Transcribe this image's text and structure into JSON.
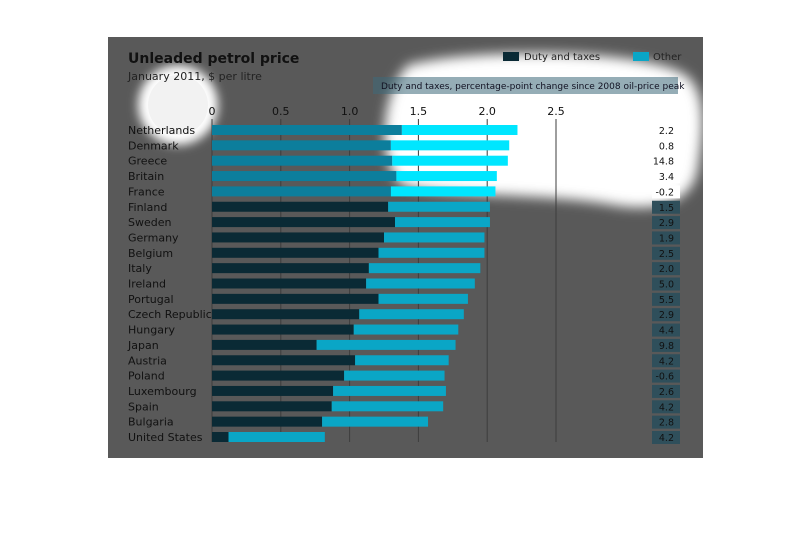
{
  "chart_data": {
    "type": "bar",
    "orientation": "horizontal",
    "stacked": true,
    "title": "Unleaded petrol price",
    "subtitle": "January 2011, $ per litre",
    "xlim": [
      0,
      2.5
    ],
    "xticks": [
      "0",
      "0.5",
      "1.0",
      "1.5",
      "2.0",
      "2.5"
    ],
    "xtick_values": [
      0,
      0.5,
      1.0,
      1.5,
      2.0,
      2.5
    ],
    "grid": true,
    "legend_position": "top-right",
    "categories": [
      "Netherlands",
      "Denmark",
      "Greece",
      "Britain",
      "France",
      "Finland",
      "Sweden",
      "Germany",
      "Belgium",
      "Italy",
      "Ireland",
      "Portugal",
      "Czech Republic",
      "Hungary",
      "Japan",
      "Austria",
      "Poland",
      "Luxembourg",
      "Spain",
      "Bulgaria",
      "United States"
    ],
    "series": [
      {
        "name": "Duty and taxes",
        "color": "#0a2a35",
        "values": [
          1.38,
          1.3,
          1.31,
          1.34,
          1.3,
          1.28,
          1.33,
          1.25,
          1.21,
          1.14,
          1.12,
          1.21,
          1.07,
          1.03,
          0.76,
          1.04,
          0.96,
          0.88,
          0.87,
          0.8,
          0.12
        ]
      },
      {
        "name": "Other",
        "color": "#0aa6c6",
        "values": [
          0.84,
          0.86,
          0.84,
          0.73,
          0.76,
          0.74,
          0.69,
          0.73,
          0.77,
          0.81,
          0.79,
          0.65,
          0.76,
          0.76,
          1.01,
          0.68,
          0.73,
          0.82,
          0.81,
          0.77,
          0.7
        ]
      }
    ],
    "side_panel": {
      "label": "Duty and taxes, percentage-point change since 2008 oil-price peak",
      "values": [
        "2.2",
        "0.8",
        "14.8",
        "3.4",
        "-0.2",
        "1.5",
        "2.9",
        "1.9",
        "2.5",
        "2.0",
        "5.0",
        "5.5",
        "2.9",
        "4.4",
        "9.8",
        "4.2",
        "-0.6",
        "2.6",
        "4.2",
        "2.8",
        "4.2"
      ]
    }
  },
  "colors": {
    "panel_bg": "#595959",
    "duty": "#0a2a35",
    "other": "#0aa6c6",
    "highlight_duty": "#0c7e9c",
    "highlight_other": "#00e6ff",
    "value_box": "#2f4f5b"
  }
}
